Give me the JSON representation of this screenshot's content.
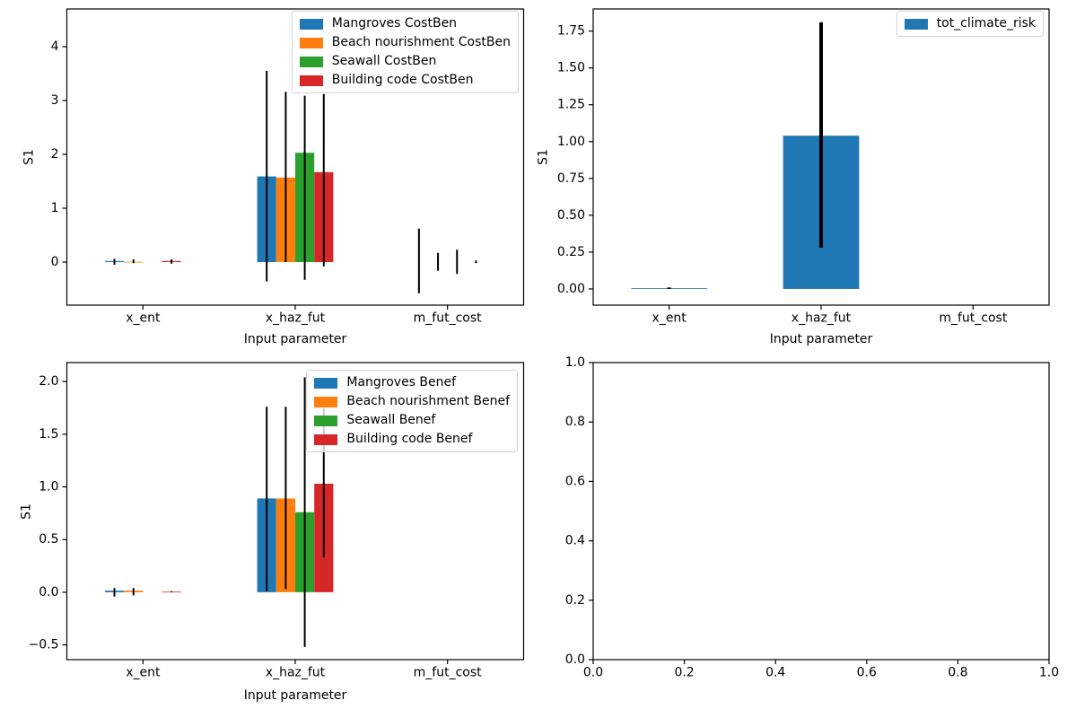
{
  "figure": {
    "background": "#ffffff",
    "axis_color": "#000000",
    "text_color": "#000000",
    "error_bar_color": "#000000"
  },
  "chart_data": [
    {
      "position": "top-left",
      "type": "bar",
      "xlabel": "Input parameter",
      "ylabel": "S1",
      "categories": [
        "x_ent",
        "x_haz_fut",
        "m_fut_cost"
      ],
      "ylim": [
        -0.8,
        4.7
      ],
      "yticks": [
        0,
        1,
        2,
        3,
        4
      ],
      "ytick_labels": [
        "0",
        "1",
        "2",
        "3",
        "4"
      ],
      "grid": false,
      "legend_position": "upper right",
      "series": [
        {
          "name": "Mangroves CostBen",
          "color": "#1f77b4",
          "values": [
            0.02,
            1.59,
            0
          ],
          "errors": [
            [
              -0.05,
              0.06
            ],
            [
              -0.36,
              3.55
            ],
            [
              -0.58,
              0.62
            ]
          ]
        },
        {
          "name": "Beach nourishment CostBen",
          "color": "#ff7f0e",
          "values": [
            0.005,
            1.57,
            0
          ],
          "errors": [
            [
              -0.02,
              0.05
            ],
            [
              0.0,
              3.16
            ],
            [
              -0.16,
              0.17
            ]
          ]
        },
        {
          "name": "Seawall CostBen",
          "color": "#2ca02c",
          "values": [
            0,
            2.03,
            0
          ],
          "errors": [
            null,
            [
              -0.33,
              3.09
            ],
            [
              -0.22,
              0.23
            ]
          ]
        },
        {
          "name": "Building code CostBen",
          "color": "#d62728",
          "values": [
            0.02,
            1.67,
            0
          ],
          "errors": [
            [
              -0.03,
              0.05
            ],
            [
              -0.08,
              3.12
            ],
            [
              -0.02,
              0.03
            ]
          ]
        }
      ]
    },
    {
      "position": "top-right",
      "type": "bar",
      "xlabel": "Input parameter",
      "ylabel": "S1",
      "categories": [
        "x_ent",
        "x_haz_fut",
        "m_fut_cost"
      ],
      "ylim": [
        -0.11,
        1.9
      ],
      "yticks": [
        0,
        0.25,
        0.5,
        0.75,
        1.0,
        1.25,
        1.5,
        1.75
      ],
      "ytick_labels": [
        "0.00",
        "0.25",
        "0.50",
        "0.75",
        "1.00",
        "1.25",
        "1.50",
        "1.75"
      ],
      "grid": false,
      "legend_position": "upper right",
      "series": [
        {
          "name": "tot_climate_risk",
          "color": "#1f77b4",
          "values": [
            0.005,
            1.04,
            0
          ],
          "errors": [
            [
              0.0,
              0.01
            ],
            [
              0.28,
              1.81
            ],
            null
          ]
        }
      ]
    },
    {
      "position": "bottom-left",
      "type": "bar",
      "xlabel": "Input parameter",
      "ylabel": "S1",
      "categories": [
        "x_ent",
        "x_haz_fut",
        "m_fut_cost"
      ],
      "ylim": [
        -0.64,
        2.18
      ],
      "yticks": [
        -0.5,
        0,
        0.5,
        1.0,
        1.5,
        2.0
      ],
      "ytick_labels": [
        "−0.5",
        "0.0",
        "0.5",
        "1.0",
        "1.5",
        "2.0"
      ],
      "grid": false,
      "legend_position": "upper right",
      "series": [
        {
          "name": "Mangroves Benef",
          "color": "#1f77b4",
          "values": [
            0.015,
            0.89,
            0
          ],
          "errors": [
            [
              -0.04,
              0.04
            ],
            [
              0.01,
              1.76
            ],
            null
          ]
        },
        {
          "name": "Beach nourishment Benef",
          "color": "#ff7f0e",
          "values": [
            0.015,
            0.89,
            0
          ],
          "errors": [
            [
              -0.03,
              0.04
            ],
            [
              0.03,
              1.76
            ],
            null
          ]
        },
        {
          "name": "Seawall Benef",
          "color": "#2ca02c",
          "values": [
            0,
            0.76,
            0
          ],
          "errors": [
            null,
            [
              -0.52,
              2.04
            ],
            null
          ]
        },
        {
          "name": "Building code Benef",
          "color": "#d62728",
          "values": [
            0.005,
            1.03,
            0
          ],
          "errors": [
            [
              0.0,
              0.01
            ],
            [
              0.33,
              1.75
            ],
            null
          ]
        }
      ]
    },
    {
      "position": "bottom-right",
      "type": "empty",
      "xlabel": "",
      "ylabel": "",
      "xlim": [
        0,
        1
      ],
      "ylim": [
        0,
        1
      ],
      "xticks": [
        0,
        0.2,
        0.4,
        0.6,
        0.8,
        1.0
      ],
      "xtick_labels": [
        "0.0",
        "0.2",
        "0.4",
        "0.6",
        "0.8",
        "1.0"
      ],
      "yticks": [
        0,
        0.2,
        0.4,
        0.6,
        0.8,
        1.0
      ],
      "ytick_labels": [
        "0.0",
        "0.2",
        "0.4",
        "0.6",
        "0.8",
        "1.0"
      ],
      "grid": false
    }
  ]
}
